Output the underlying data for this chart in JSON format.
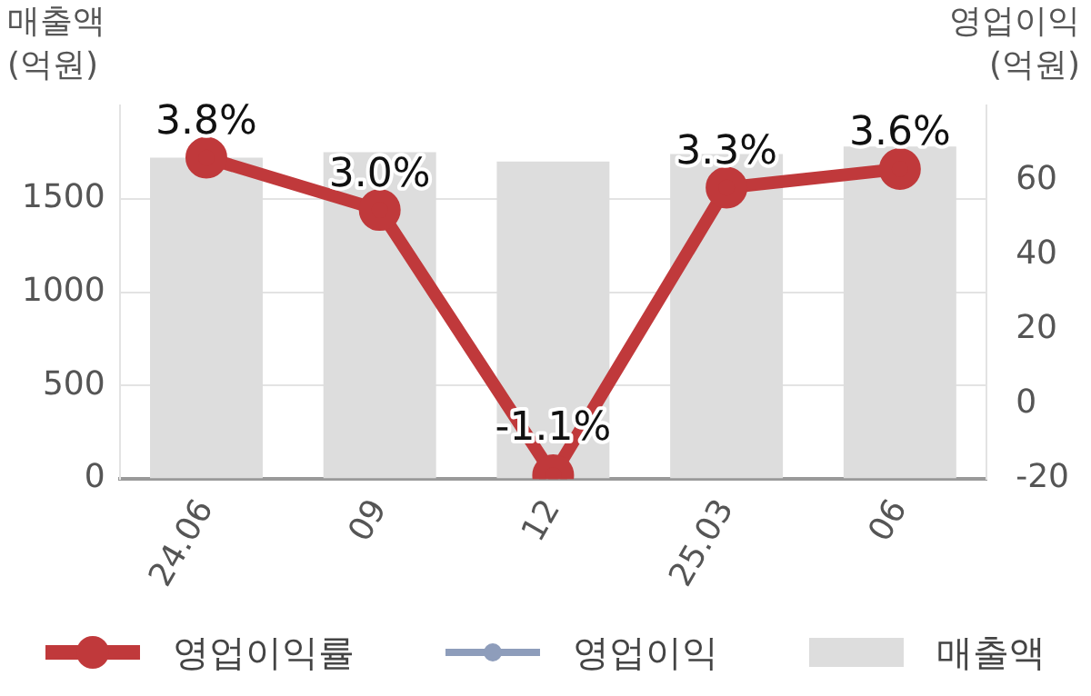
{
  "chart_data": {
    "type": "bar",
    "ylabel": "매출액\n(억원)",
    "y2label": "영업이익\n(억원)",
    "categories": [
      "24.06",
      "09",
      "12",
      "25.03",
      "06"
    ],
    "series": [
      {
        "name": "영업이익률",
        "type": "line",
        "axis": "y2",
        "color": "#c0393b",
        "marker": "circle",
        "values": [
          66,
          52,
          -19,
          58,
          63
        ]
      },
      {
        "name": "영업이익",
        "type": "line",
        "axis": "y2",
        "color": "#8e9dbb",
        "marker": "circle",
        "values": [
          null,
          null,
          null,
          null,
          null
        ]
      },
      {
        "name": "매출액",
        "color": "#dddddd",
        "values": [
          1720,
          1750,
          1700,
          1740,
          1780
        ]
      }
    ],
    "annotations": [
      "3.8%",
      "3.0%",
      "-1.1%",
      "3.3%",
      "3.6%"
    ],
    "ylim": [
      0,
      2000
    ],
    "yticks": [
      0,
      500,
      1000,
      1500
    ],
    "y2lim": [
      -20,
      80
    ],
    "y2ticks": [
      -20,
      0,
      20,
      40,
      60
    ],
    "grid": "y",
    "legend": "bottom"
  }
}
